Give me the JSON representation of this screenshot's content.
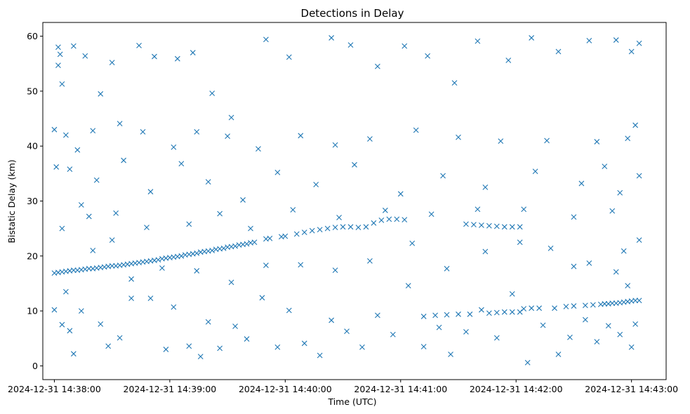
{
  "chart_data": {
    "type": "scatter",
    "title": "Detections in Delay",
    "xlabel": "Time (UTC)",
    "ylabel": "Bistatic Delay (km)",
    "marker": "x",
    "color": "#1f77b4",
    "grid": false,
    "legend": "none",
    "xlim": [
      "2024-12-31 14:37:54",
      "2024-12-31 14:43:18"
    ],
    "ylim": [
      -2.5,
      62.5
    ],
    "x_ticks": [
      "2024-12-31 14:38:00",
      "2024-12-31 14:39:00",
      "2024-12-31 14:40:00",
      "2024-12-31 14:41:00",
      "2024-12-31 14:42:00",
      "2024-12-31 14:43:00"
    ],
    "y_ticks": [
      "0",
      "10",
      "20",
      "30",
      "40",
      "50",
      "60"
    ],
    "track_points": [
      [
        "2024-12-31 14:38:00",
        16.9
      ],
      [
        "2024-12-31 14:38:02",
        17.0
      ],
      [
        "2024-12-31 14:38:04",
        17.1
      ],
      [
        "2024-12-31 14:38:06",
        17.2
      ],
      [
        "2024-12-31 14:38:08",
        17.3
      ],
      [
        "2024-12-31 14:38:10",
        17.4
      ],
      [
        "2024-12-31 14:38:12",
        17.4
      ],
      [
        "2024-12-31 14:38:14",
        17.5
      ],
      [
        "2024-12-31 14:38:16",
        17.6
      ],
      [
        "2024-12-31 14:38:18",
        17.7
      ],
      [
        "2024-12-31 14:38:20",
        17.7
      ],
      [
        "2024-12-31 14:38:22",
        17.8
      ],
      [
        "2024-12-31 14:38:24",
        17.9
      ],
      [
        "2024-12-31 14:38:26",
        18.0
      ],
      [
        "2024-12-31 14:38:28",
        18.1
      ],
      [
        "2024-12-31 14:38:30",
        18.2
      ],
      [
        "2024-12-31 14:38:32",
        18.2
      ],
      [
        "2024-12-31 14:38:34",
        18.3
      ],
      [
        "2024-12-31 14:38:36",
        18.4
      ],
      [
        "2024-12-31 14:38:38",
        18.5
      ],
      [
        "2024-12-31 14:38:40",
        18.6
      ],
      [
        "2024-12-31 14:38:42",
        18.7
      ],
      [
        "2024-12-31 14:38:44",
        18.8
      ],
      [
        "2024-12-31 14:38:46",
        18.9
      ],
      [
        "2024-12-31 14:38:48",
        19.0
      ],
      [
        "2024-12-31 14:38:50",
        19.1
      ],
      [
        "2024-12-31 14:38:52",
        19.2
      ],
      [
        "2024-12-31 14:38:54",
        19.3
      ],
      [
        "2024-12-31 14:38:56",
        19.5
      ],
      [
        "2024-12-31 14:38:58",
        19.6
      ],
      [
        "2024-12-31 14:39:00",
        19.7
      ],
      [
        "2024-12-31 14:39:02",
        19.8
      ],
      [
        "2024-12-31 14:39:04",
        19.9
      ],
      [
        "2024-12-31 14:39:06",
        20.0
      ],
      [
        "2024-12-31 14:39:08",
        20.2
      ],
      [
        "2024-12-31 14:39:10",
        20.3
      ],
      [
        "2024-12-31 14:39:12",
        20.4
      ],
      [
        "2024-12-31 14:39:14",
        20.5
      ],
      [
        "2024-12-31 14:39:16",
        20.7
      ],
      [
        "2024-12-31 14:39:18",
        20.8
      ],
      [
        "2024-12-31 14:39:20",
        20.9
      ],
      [
        "2024-12-31 14:39:22",
        21.0
      ],
      [
        "2024-12-31 14:39:24",
        21.2
      ],
      [
        "2024-12-31 14:39:26",
        21.3
      ],
      [
        "2024-12-31 14:39:28",
        21.4
      ],
      [
        "2024-12-31 14:39:30",
        21.6
      ],
      [
        "2024-12-31 14:39:32",
        21.7
      ],
      [
        "2024-12-31 14:39:34",
        21.8
      ],
      [
        "2024-12-31 14:39:36",
        22.0
      ],
      [
        "2024-12-31 14:39:38",
        22.1
      ],
      [
        "2024-12-31 14:39:40",
        22.2
      ],
      [
        "2024-12-31 14:39:42",
        22.4
      ],
      [
        "2024-12-31 14:39:44",
        22.5
      ],
      [
        "2024-12-31 14:39:50",
        23.1
      ],
      [
        "2024-12-31 14:39:52",
        23.2
      ],
      [
        "2024-12-31 14:39:58",
        23.5
      ],
      [
        "2024-12-31 14:40:00",
        23.6
      ],
      [
        "2024-12-31 14:40:06",
        24.0
      ],
      [
        "2024-12-31 14:40:10",
        24.3
      ],
      [
        "2024-12-31 14:40:14",
        24.6
      ],
      [
        "2024-12-31 14:40:18",
        24.8
      ],
      [
        "2024-12-31 14:40:22",
        25.0
      ],
      [
        "2024-12-31 14:40:26",
        25.2
      ],
      [
        "2024-12-31 14:40:30",
        25.3
      ],
      [
        "2024-12-31 14:40:34",
        25.3
      ],
      [
        "2024-12-31 14:40:38",
        25.2
      ],
      [
        "2024-12-31 14:40:42",
        25.3
      ],
      [
        "2024-12-31 14:40:46",
        26.0
      ],
      [
        "2024-12-31 14:40:50",
        26.5
      ],
      [
        "2024-12-31 14:40:54",
        26.7
      ],
      [
        "2024-12-31 14:40:58",
        26.7
      ],
      [
        "2024-12-31 14:41:02",
        26.6
      ],
      [
        "2024-12-31 14:41:34",
        25.8
      ],
      [
        "2024-12-31 14:41:38",
        25.7
      ],
      [
        "2024-12-31 14:41:42",
        25.6
      ],
      [
        "2024-12-31 14:41:46",
        25.5
      ],
      [
        "2024-12-31 14:41:50",
        25.4
      ],
      [
        "2024-12-31 14:41:54",
        25.3
      ],
      [
        "2024-12-31 14:41:58",
        25.3
      ],
      [
        "2024-12-31 14:42:02",
        25.3
      ],
      [
        "2024-12-31 14:41:46",
        9.6
      ],
      [
        "2024-12-31 14:41:50",
        9.7
      ],
      [
        "2024-12-31 14:41:54",
        9.8
      ],
      [
        "2024-12-31 14:41:58",
        9.8
      ],
      [
        "2024-12-31 14:42:02",
        9.8
      ],
      [
        "2024-12-31 14:41:36",
        9.4
      ],
      [
        "2024-12-31 14:41:30",
        9.4
      ],
      [
        "2024-12-31 14:41:24",
        9.3
      ],
      [
        "2024-12-31 14:41:18",
        9.2
      ],
      [
        "2024-12-31 14:41:12",
        9.0
      ],
      [
        "2024-12-31 14:42:04",
        10.4
      ],
      [
        "2024-12-31 14:42:08",
        10.5
      ],
      [
        "2024-12-31 14:42:12",
        10.5
      ],
      [
        "2024-12-31 14:42:20",
        10.5
      ],
      [
        "2024-12-31 14:42:26",
        10.8
      ],
      [
        "2024-12-31 14:42:30",
        10.9
      ],
      [
        "2024-12-31 14:42:36",
        11.0
      ],
      [
        "2024-12-31 14:42:40",
        11.1
      ],
      [
        "2024-12-31 14:42:44",
        11.2
      ],
      [
        "2024-12-31 14:42:46",
        11.3
      ],
      [
        "2024-12-31 14:42:48",
        11.3
      ],
      [
        "2024-12-31 14:42:50",
        11.4
      ],
      [
        "2024-12-31 14:42:52",
        11.4
      ],
      [
        "2024-12-31 14:42:54",
        11.5
      ],
      [
        "2024-12-31 14:42:56",
        11.6
      ],
      [
        "2024-12-31 14:42:58",
        11.7
      ],
      [
        "2024-12-31 14:43:00",
        11.8
      ],
      [
        "2024-12-31 14:43:02",
        11.9
      ],
      [
        "2024-12-31 14:43:04",
        11.9
      ]
    ],
    "scatter_points": [
      [
        "2024-12-31 14:38:02",
        58.0
      ],
      [
        "2024-12-31 14:38:03",
        56.7
      ],
      [
        "2024-12-31 14:38:04",
        51.3
      ],
      [
        "2024-12-31 14:38:02",
        54.7
      ],
      [
        "2024-12-31 14:38:10",
        58.2
      ],
      [
        "2024-12-31 14:38:16",
        56.4
      ],
      [
        "2024-12-31 14:38:24",
        49.5
      ],
      [
        "2024-12-31 14:38:30",
        55.2
      ],
      [
        "2024-12-31 14:38:44",
        58.3
      ],
      [
        "2024-12-31 14:38:52",
        56.3
      ],
      [
        "2024-12-31 14:39:04",
        55.9
      ],
      [
        "2024-12-31 14:39:12",
        57.0
      ],
      [
        "2024-12-31 14:39:22",
        49.6
      ],
      [
        "2024-12-31 14:39:32",
        45.2
      ],
      [
        "2024-12-31 14:39:50",
        59.4
      ],
      [
        "2024-12-31 14:40:02",
        56.2
      ],
      [
        "2024-12-31 14:40:24",
        59.7
      ],
      [
        "2024-12-31 14:40:34",
        58.4
      ],
      [
        "2024-12-31 14:40:48",
        54.5
      ],
      [
        "2024-12-31 14:41:02",
        58.2
      ],
      [
        "2024-12-31 14:41:14",
        56.4
      ],
      [
        "2024-12-31 14:41:28",
        51.5
      ],
      [
        "2024-12-31 14:41:40",
        59.1
      ],
      [
        "2024-12-31 14:41:56",
        55.6
      ],
      [
        "2024-12-31 14:42:08",
        59.7
      ],
      [
        "2024-12-31 14:42:22",
        57.2
      ],
      [
        "2024-12-31 14:42:38",
        59.2
      ],
      [
        "2024-12-31 14:42:52",
        59.3
      ],
      [
        "2024-12-31 14:43:00",
        57.2
      ],
      [
        "2024-12-31 14:43:04",
        58.7
      ],
      [
        "2024-12-31 14:38:00",
        43.0
      ],
      [
        "2024-12-31 14:38:06",
        42.0
      ],
      [
        "2024-12-31 14:38:12",
        39.3
      ],
      [
        "2024-12-31 14:38:20",
        42.8
      ],
      [
        "2024-12-31 14:38:34",
        44.1
      ],
      [
        "2024-12-31 14:38:46",
        42.6
      ],
      [
        "2024-12-31 14:39:02",
        39.8
      ],
      [
        "2024-12-31 14:39:14",
        42.6
      ],
      [
        "2024-12-31 14:39:30",
        41.8
      ],
      [
        "2024-12-31 14:39:46",
        39.5
      ],
      [
        "2024-12-31 14:40:08",
        41.9
      ],
      [
        "2024-12-31 14:40:26",
        40.2
      ],
      [
        "2024-12-31 14:40:44",
        41.3
      ],
      [
        "2024-12-31 14:41:08",
        42.9
      ],
      [
        "2024-12-31 14:41:30",
        41.6
      ],
      [
        "2024-12-31 14:41:52",
        40.9
      ],
      [
        "2024-12-31 14:42:16",
        41.0
      ],
      [
        "2024-12-31 14:42:42",
        40.8
      ],
      [
        "2024-12-31 14:42:58",
        41.4
      ],
      [
        "2024-12-31 14:43:02",
        43.8
      ],
      [
        "2024-12-31 14:38:01",
        36.2
      ],
      [
        "2024-12-31 14:38:08",
        35.8
      ],
      [
        "2024-12-31 14:38:14",
        29.3
      ],
      [
        "2024-12-31 14:38:22",
        33.8
      ],
      [
        "2024-12-31 14:38:36",
        37.4
      ],
      [
        "2024-12-31 14:38:50",
        31.7
      ],
      [
        "2024-12-31 14:39:06",
        36.8
      ],
      [
        "2024-12-31 14:39:20",
        33.5
      ],
      [
        "2024-12-31 14:39:38",
        30.2
      ],
      [
        "2024-12-31 14:39:56",
        35.2
      ],
      [
        "2024-12-31 14:40:16",
        33.0
      ],
      [
        "2024-12-31 14:40:36",
        36.6
      ],
      [
        "2024-12-31 14:41:00",
        31.3
      ],
      [
        "2024-12-31 14:41:22",
        34.6
      ],
      [
        "2024-12-31 14:41:44",
        32.5
      ],
      [
        "2024-12-31 14:42:10",
        35.4
      ],
      [
        "2024-12-31 14:42:34",
        33.2
      ],
      [
        "2024-12-31 14:42:54",
        31.5
      ],
      [
        "2024-12-31 14:43:04",
        34.6
      ],
      [
        "2024-12-31 14:42:46",
        36.3
      ],
      [
        "2024-12-31 14:38:04",
        25.0
      ],
      [
        "2024-12-31 14:38:18",
        27.2
      ],
      [
        "2024-12-31 14:38:32",
        27.8
      ],
      [
        "2024-12-31 14:38:48",
        25.2
      ],
      [
        "2024-12-31 14:39:10",
        25.8
      ],
      [
        "2024-12-31 14:39:26",
        27.7
      ],
      [
        "2024-12-31 14:39:42",
        25.0
      ],
      [
        "2024-12-31 14:40:04",
        28.4
      ],
      [
        "2024-12-31 14:40:28",
        27.0
      ],
      [
        "2024-12-31 14:40:52",
        28.3
      ],
      [
        "2024-12-31 14:41:16",
        27.6
      ],
      [
        "2024-12-31 14:41:40",
        28.5
      ],
      [
        "2024-12-31 14:42:04",
        28.5
      ],
      [
        "2024-12-31 14:42:30",
        27.1
      ],
      [
        "2024-12-31 14:42:50",
        28.2
      ],
      [
        "2024-12-31 14:38:00",
        10.2
      ],
      [
        "2024-12-31 14:38:04",
        7.5
      ],
      [
        "2024-12-31 14:38:06",
        13.5
      ],
      [
        "2024-12-31 14:38:08",
        6.4
      ],
      [
        "2024-12-31 14:38:10",
        2.2
      ],
      [
        "2024-12-31 14:38:14",
        10.0
      ],
      [
        "2024-12-31 14:38:24",
        7.6
      ],
      [
        "2024-12-31 14:38:28",
        3.6
      ],
      [
        "2024-12-31 14:38:34",
        5.1
      ],
      [
        "2024-12-31 14:38:40",
        12.3
      ],
      [
        "2024-12-31 14:38:50",
        12.3
      ],
      [
        "2024-12-31 14:38:58",
        3.0
      ],
      [
        "2024-12-31 14:39:02",
        10.7
      ],
      [
        "2024-12-31 14:39:10",
        3.6
      ],
      [
        "2024-12-31 14:39:16",
        1.7
      ],
      [
        "2024-12-31 14:39:20",
        8.0
      ],
      [
        "2024-12-31 14:39:26",
        3.2
      ],
      [
        "2024-12-31 14:39:34",
        7.2
      ],
      [
        "2024-12-31 14:39:40",
        4.9
      ],
      [
        "2024-12-31 14:39:48",
        12.4
      ],
      [
        "2024-12-31 14:39:56",
        3.4
      ],
      [
        "2024-12-31 14:40:02",
        10.1
      ],
      [
        "2024-12-31 14:40:10",
        4.1
      ],
      [
        "2024-12-31 14:40:18",
        1.9
      ],
      [
        "2024-12-31 14:40:24",
        8.3
      ],
      [
        "2024-12-31 14:40:32",
        6.3
      ],
      [
        "2024-12-31 14:40:40",
        3.4
      ],
      [
        "2024-12-31 14:40:48",
        9.2
      ],
      [
        "2024-12-31 14:40:56",
        5.7
      ],
      [
        "2024-12-31 14:41:04",
        14.6
      ],
      [
        "2024-12-31 14:41:12",
        3.5
      ],
      [
        "2024-12-31 14:41:20",
        7.0
      ],
      [
        "2024-12-31 14:41:26",
        2.1
      ],
      [
        "2024-12-31 14:41:34",
        6.2
      ],
      [
        "2024-12-31 14:41:42",
        10.2
      ],
      [
        "2024-12-31 14:41:50",
        5.1
      ],
      [
        "2024-12-31 14:41:58",
        13.1
      ],
      [
        "2024-12-31 14:42:06",
        0.6
      ],
      [
        "2024-12-31 14:42:14",
        7.4
      ],
      [
        "2024-12-31 14:42:22",
        2.1
      ],
      [
        "2024-12-31 14:42:28",
        5.2
      ],
      [
        "2024-12-31 14:42:36",
        8.4
      ],
      [
        "2024-12-31 14:42:42",
        4.4
      ],
      [
        "2024-12-31 14:42:48",
        7.3
      ],
      [
        "2024-12-31 14:42:54",
        5.7
      ],
      [
        "2024-12-31 14:43:00",
        3.4
      ],
      [
        "2024-12-31 14:43:02",
        7.6
      ],
      [
        "2024-12-31 14:42:58",
        14.6
      ],
      [
        "2024-12-31 14:42:52",
        17.1
      ],
      [
        "2024-12-31 14:42:30",
        18.1
      ],
      [
        "2024-12-31 14:38:20",
        21.0
      ],
      [
        "2024-12-31 14:38:30",
        22.9
      ],
      [
        "2024-12-31 14:38:40",
        15.8
      ],
      [
        "2024-12-31 14:38:56",
        17.8
      ],
      [
        "2024-12-31 14:39:14",
        17.3
      ],
      [
        "2024-12-31 14:39:32",
        15.2
      ],
      [
        "2024-12-31 14:39:50",
        18.3
      ],
      [
        "2024-12-31 14:40:08",
        18.4
      ],
      [
        "2024-12-31 14:40:26",
        17.4
      ],
      [
        "2024-12-31 14:40:44",
        19.1
      ],
      [
        "2024-12-31 14:41:06",
        22.3
      ],
      [
        "2024-12-31 14:41:24",
        17.7
      ],
      [
        "2024-12-31 14:41:44",
        20.8
      ],
      [
        "2024-12-31 14:42:02",
        22.5
      ],
      [
        "2024-12-31 14:42:18",
        21.4
      ],
      [
        "2024-12-31 14:42:38",
        18.7
      ],
      [
        "2024-12-31 14:42:56",
        20.9
      ],
      [
        "2024-12-31 14:43:04",
        22.9
      ]
    ]
  }
}
